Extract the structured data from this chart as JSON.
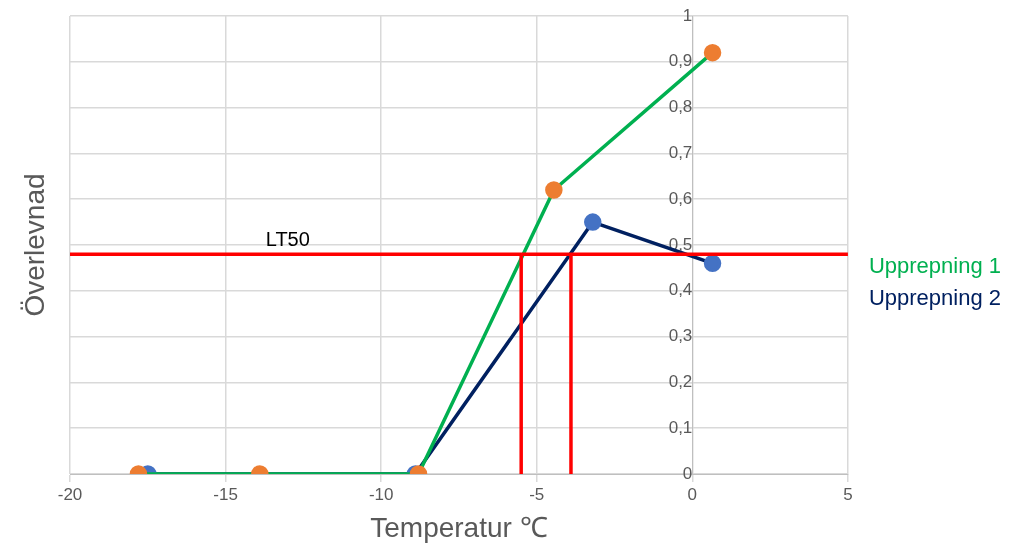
{
  "chart_data": {
    "type": "line",
    "xlabel": "Temperatur ℃",
    "ylabel": "Överlevnad",
    "xlim": [
      -20,
      5
    ],
    "xticks": [
      -20,
      -15,
      -10,
      -5,
      0,
      5
    ],
    "ylim": [
      0,
      1
    ],
    "yticks": [
      {
        "value": 0,
        "label": "0"
      },
      {
        "value": 0.1,
        "label": "0,1"
      },
      {
        "value": 0.2,
        "label": "0,2"
      },
      {
        "value": 0.3,
        "label": "0,3"
      },
      {
        "value": 0.4,
        "label": "0,4"
      },
      {
        "value": 0.5,
        "label": "0,5"
      },
      {
        "value": 0.6,
        "label": "0,6"
      },
      {
        "value": 0.7,
        "label": "0,7"
      },
      {
        "value": 0.8,
        "label": "0,8"
      },
      {
        "value": 0.9,
        "label": "0,9"
      },
      {
        "value": 1,
        "label": "1"
      }
    ],
    "grid": true,
    "legend": "right",
    "marker": "circle",
    "series": [
      {
        "color": "#ff0000",
        "marker": "none",
        "x": [
          -5.5,
          -5.5
        ],
        "values": [
          0,
          0.48
        ]
      },
      {
        "color": "#ff0000",
        "marker": "none",
        "x": [
          -3.9,
          -3.9
        ],
        "values": [
          0,
          0.48
        ]
      },
      {
        "name": "Upprepning 1",
        "color": "#00b050",
        "colors": [
          "#ed7d31",
          "#ed7d31",
          "#ed7d31",
          "#ed7d31",
          "#ed7d31"
        ],
        "x": [
          -17.8,
          -13.9,
          -8.8,
          -4.45,
          0.65
        ],
        "values": [
          0,
          0,
          0,
          0.62,
          0.92
        ]
      },
      {
        "name": "Upprepning 2",
        "color": "#002060",
        "colors": [
          "#4472c4",
          "#4472c4",
          "#4472c4",
          "#4472c4"
        ],
        "x": [
          -17.5,
          -8.9,
          -3.2,
          0.65
        ],
        "values": [
          0,
          0,
          0.55,
          0.46
        ]
      }
    ],
    "ref_lines": [
      {
        "axis": "y",
        "value": 0.48,
        "label": "LT50",
        "color": "#ff0000"
      }
    ]
  }
}
